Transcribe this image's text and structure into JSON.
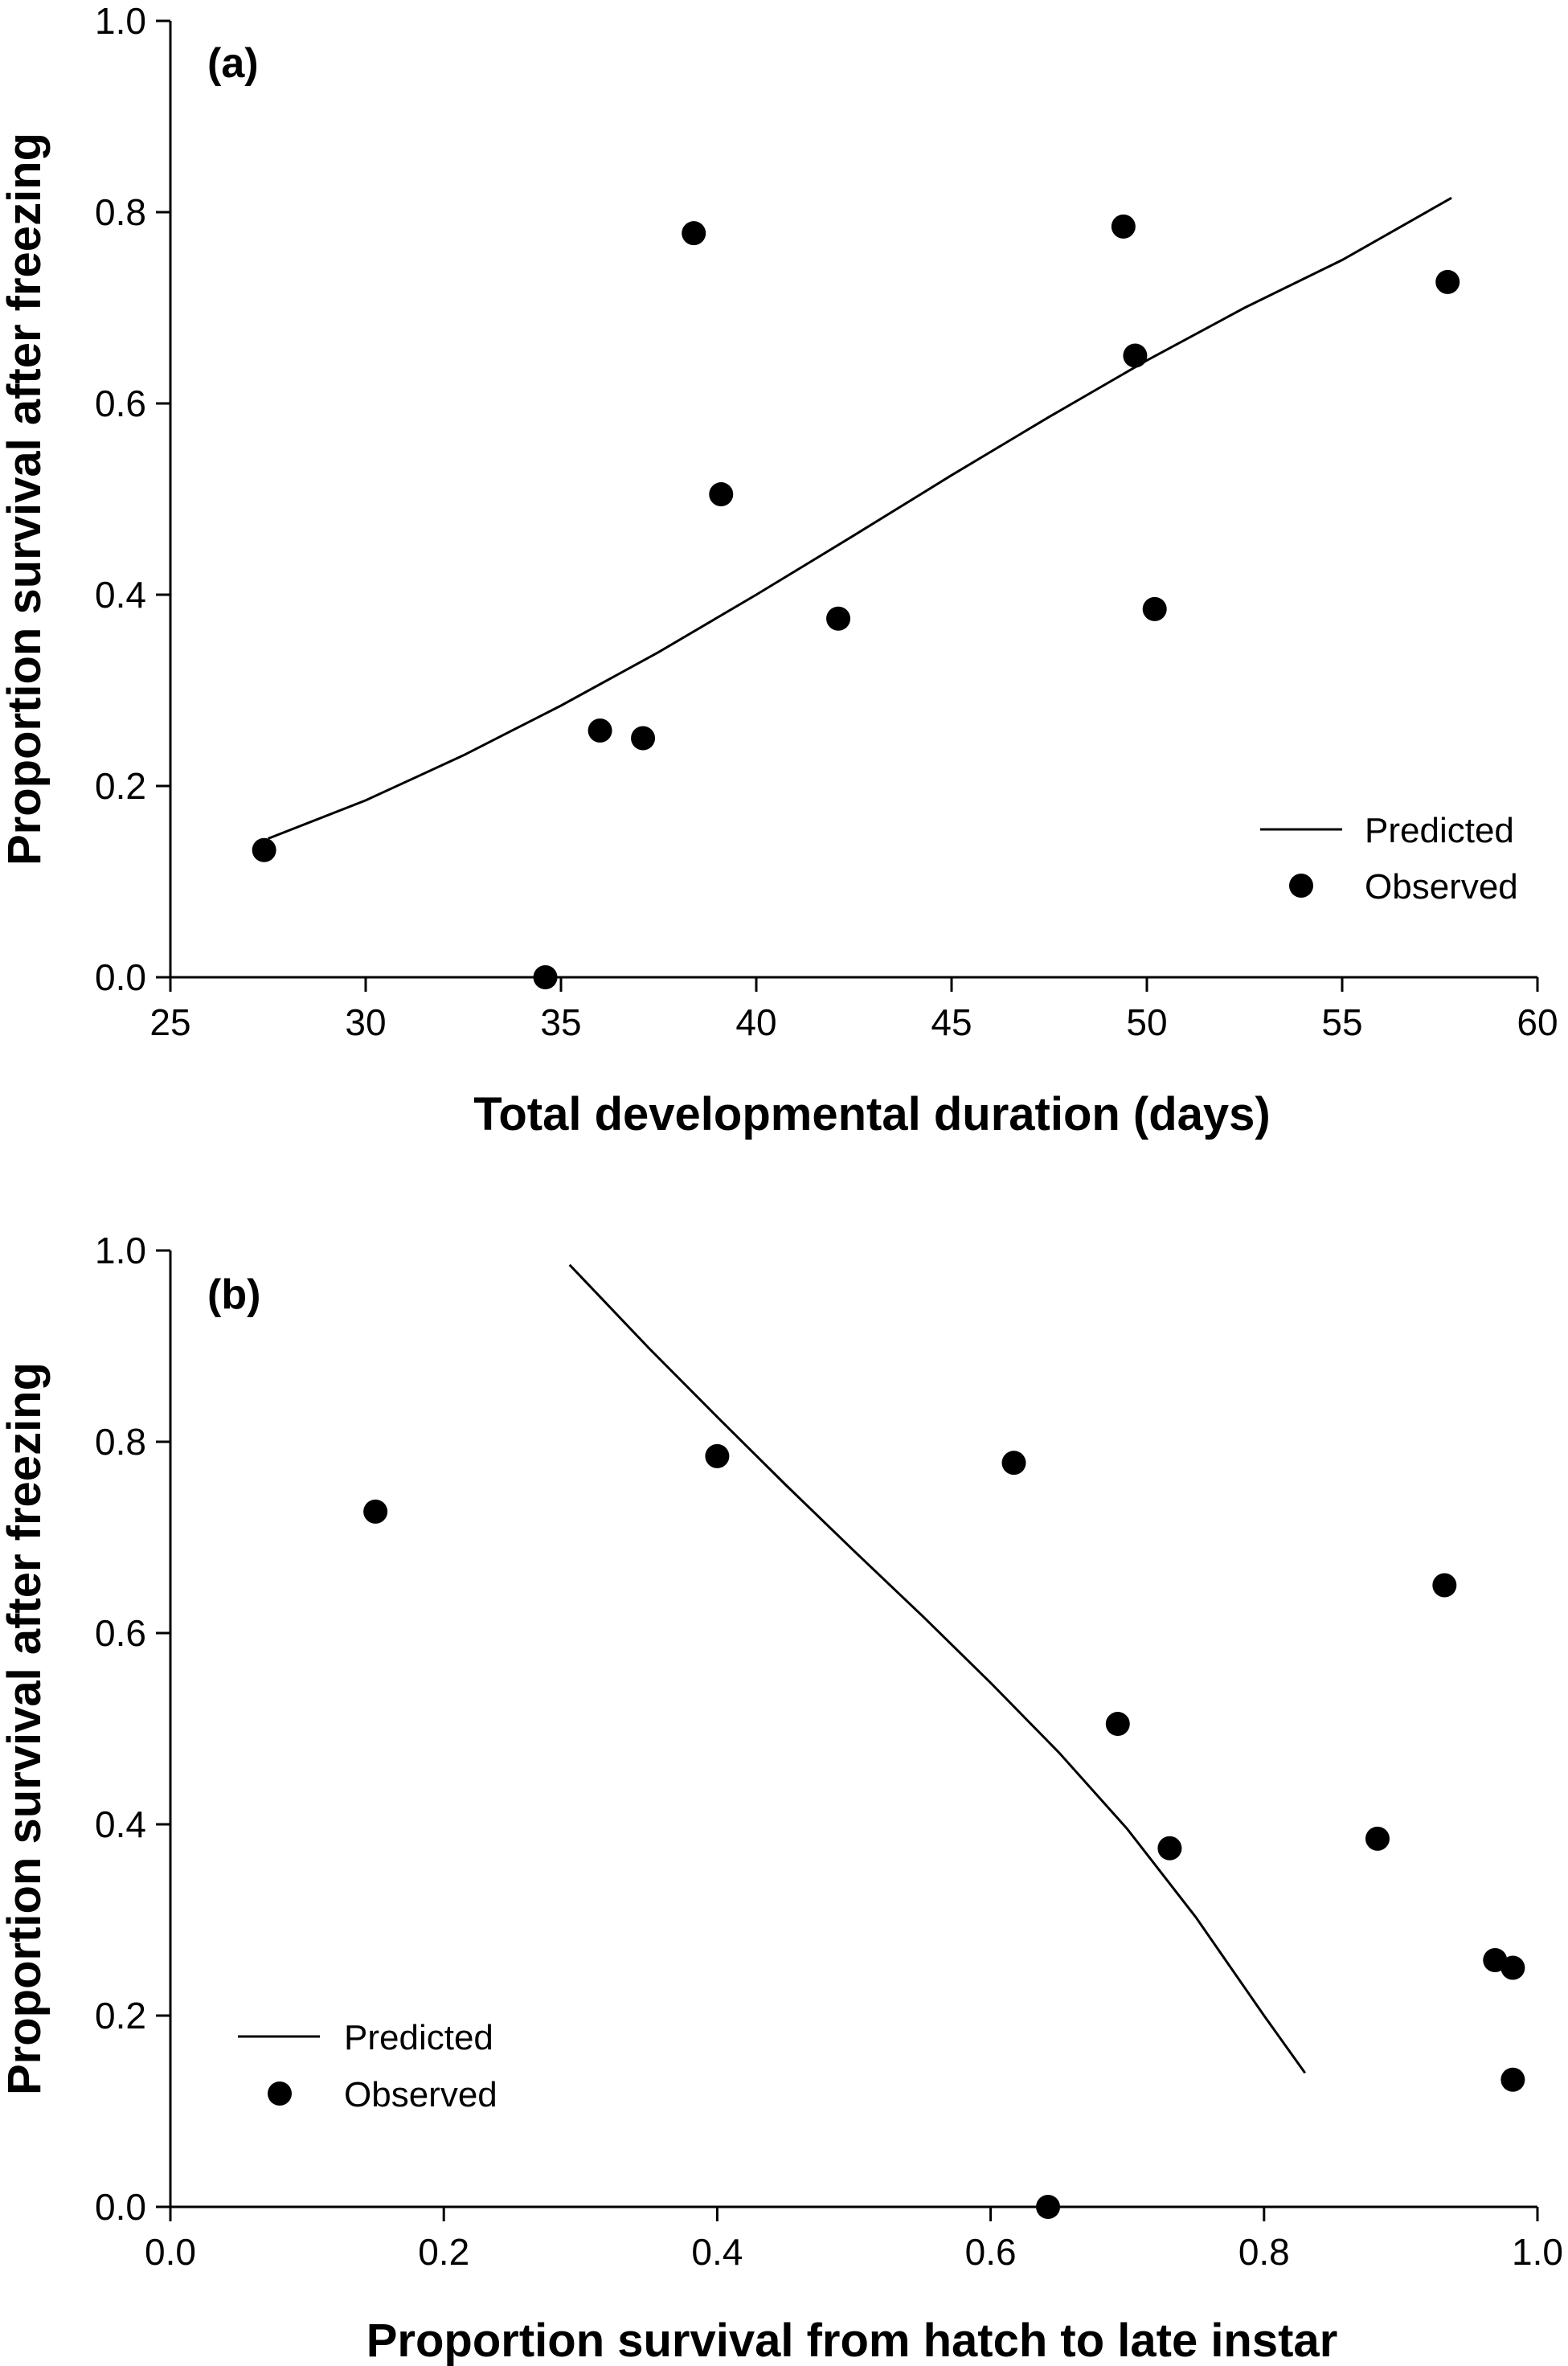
{
  "chart_data": [
    {
      "type": "scatter",
      "panel_label": "(a)",
      "xlabel": "Total developmental duration (days)",
      "ylabel": "Proportion survival after freezing",
      "xlim": [
        25,
        60
      ],
      "ylim": [
        0,
        1
      ],
      "xticks": [
        "25",
        "30",
        "35",
        "40",
        "45",
        "50",
        "55",
        "60"
      ],
      "yticks": [
        "0.0",
        "0.2",
        "0.4",
        "0.6",
        "0.8",
        "1.0"
      ],
      "legend": {
        "position": "lower-right",
        "predicted": "Predicted",
        "observed": "Observed"
      },
      "series": [
        {
          "kind": "line",
          "x": [
            27.5,
            30,
            32.5,
            35,
            37.5,
            40,
            42.5,
            45,
            47.5,
            50,
            52.5,
            55,
            57.8
          ],
          "y": [
            0.145,
            0.185,
            0.232,
            0.284,
            0.34,
            0.4,
            0.462,
            0.525,
            0.586,
            0.645,
            0.7,
            0.75,
            0.815
          ]
        },
        {
          "kind": "points",
          "x": [
            27.4,
            34.6,
            36.0,
            37.1,
            38.4,
            39.1,
            42.1,
            49.4,
            49.7,
            50.2,
            57.7
          ],
          "y": [
            0.133,
            0.0,
            0.258,
            0.25,
            0.778,
            0.505,
            0.375,
            0.785,
            0.65,
            0.385,
            0.727
          ]
        }
      ]
    },
    {
      "type": "scatter",
      "panel_label": "(b)",
      "xlabel": "Proportion survival from hatch to late instar",
      "ylabel": "Proportion survival after freezing",
      "xlim": [
        0,
        1
      ],
      "ylim": [
        0,
        1
      ],
      "xticks": [
        "0.0",
        "0.2",
        "0.4",
        "0.6",
        "0.8",
        "1.0"
      ],
      "yticks": [
        "0.0",
        "0.2",
        "0.4",
        "0.6",
        "0.8",
        "1.0"
      ],
      "legend": {
        "position": "lower-left",
        "predicted": "Predicted",
        "observed": "Observed"
      },
      "series": [
        {
          "kind": "line",
          "x": [
            0.292,
            0.35,
            0.4,
            0.45,
            0.5,
            0.55,
            0.6,
            0.65,
            0.7,
            0.75,
            0.8,
            0.83
          ],
          "y": [
            0.985,
            0.898,
            0.826,
            0.755,
            0.686,
            0.618,
            0.548,
            0.475,
            0.395,
            0.303,
            0.2,
            0.14
          ]
        },
        {
          "kind": "points",
          "x": [
            0.15,
            0.4,
            0.617,
            0.642,
            0.693,
            0.731,
            0.883,
            0.932,
            0.969,
            0.982,
            0.982
          ],
          "y": [
            0.727,
            0.785,
            0.778,
            0.0,
            0.505,
            0.375,
            0.385,
            0.65,
            0.258,
            0.25,
            0.133
          ]
        }
      ]
    }
  ]
}
